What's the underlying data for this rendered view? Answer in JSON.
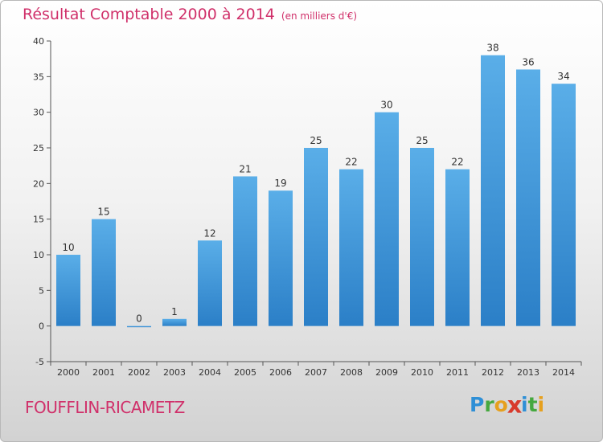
{
  "chart_data": {
    "type": "bar",
    "title": "Résultat Comptable 2000 à 2014",
    "subtitle": "(en milliers d'€)",
    "categories": [
      "2000",
      "2001",
      "2002",
      "2003",
      "2004",
      "2005",
      "2006",
      "2007",
      "2008",
      "2009",
      "2010",
      "2011",
      "2012",
      "2013",
      "2014"
    ],
    "values": [
      10,
      15,
      0,
      1,
      12,
      21,
      19,
      25,
      22,
      30,
      25,
      22,
      38,
      36,
      34
    ],
    "ylim": [
      -5,
      40
    ],
    "yticks": [
      -5,
      0,
      5,
      10,
      15,
      20,
      25,
      30,
      35,
      40
    ],
    "xlabel": "",
    "ylabel": "",
    "grid": false,
    "colors": {
      "bar_top": "#5aaee8",
      "bar_bottom": "#2b7fc7",
      "title": "#d0306a"
    }
  },
  "footer": {
    "location": "FOUFFLIN-RICAMETZ",
    "logo_letters": [
      {
        "char": "P",
        "color": "#2e8fd6"
      },
      {
        "char": "r",
        "color": "#45a83f"
      },
      {
        "char": "o",
        "color": "#e6a01e"
      },
      {
        "char": "x",
        "color": "#d83a2c"
      },
      {
        "char": "i",
        "color": "#2e8fd6"
      },
      {
        "char": "t",
        "color": "#45a83f"
      },
      {
        "char": "i",
        "color": "#e6a01e"
      }
    ]
  }
}
